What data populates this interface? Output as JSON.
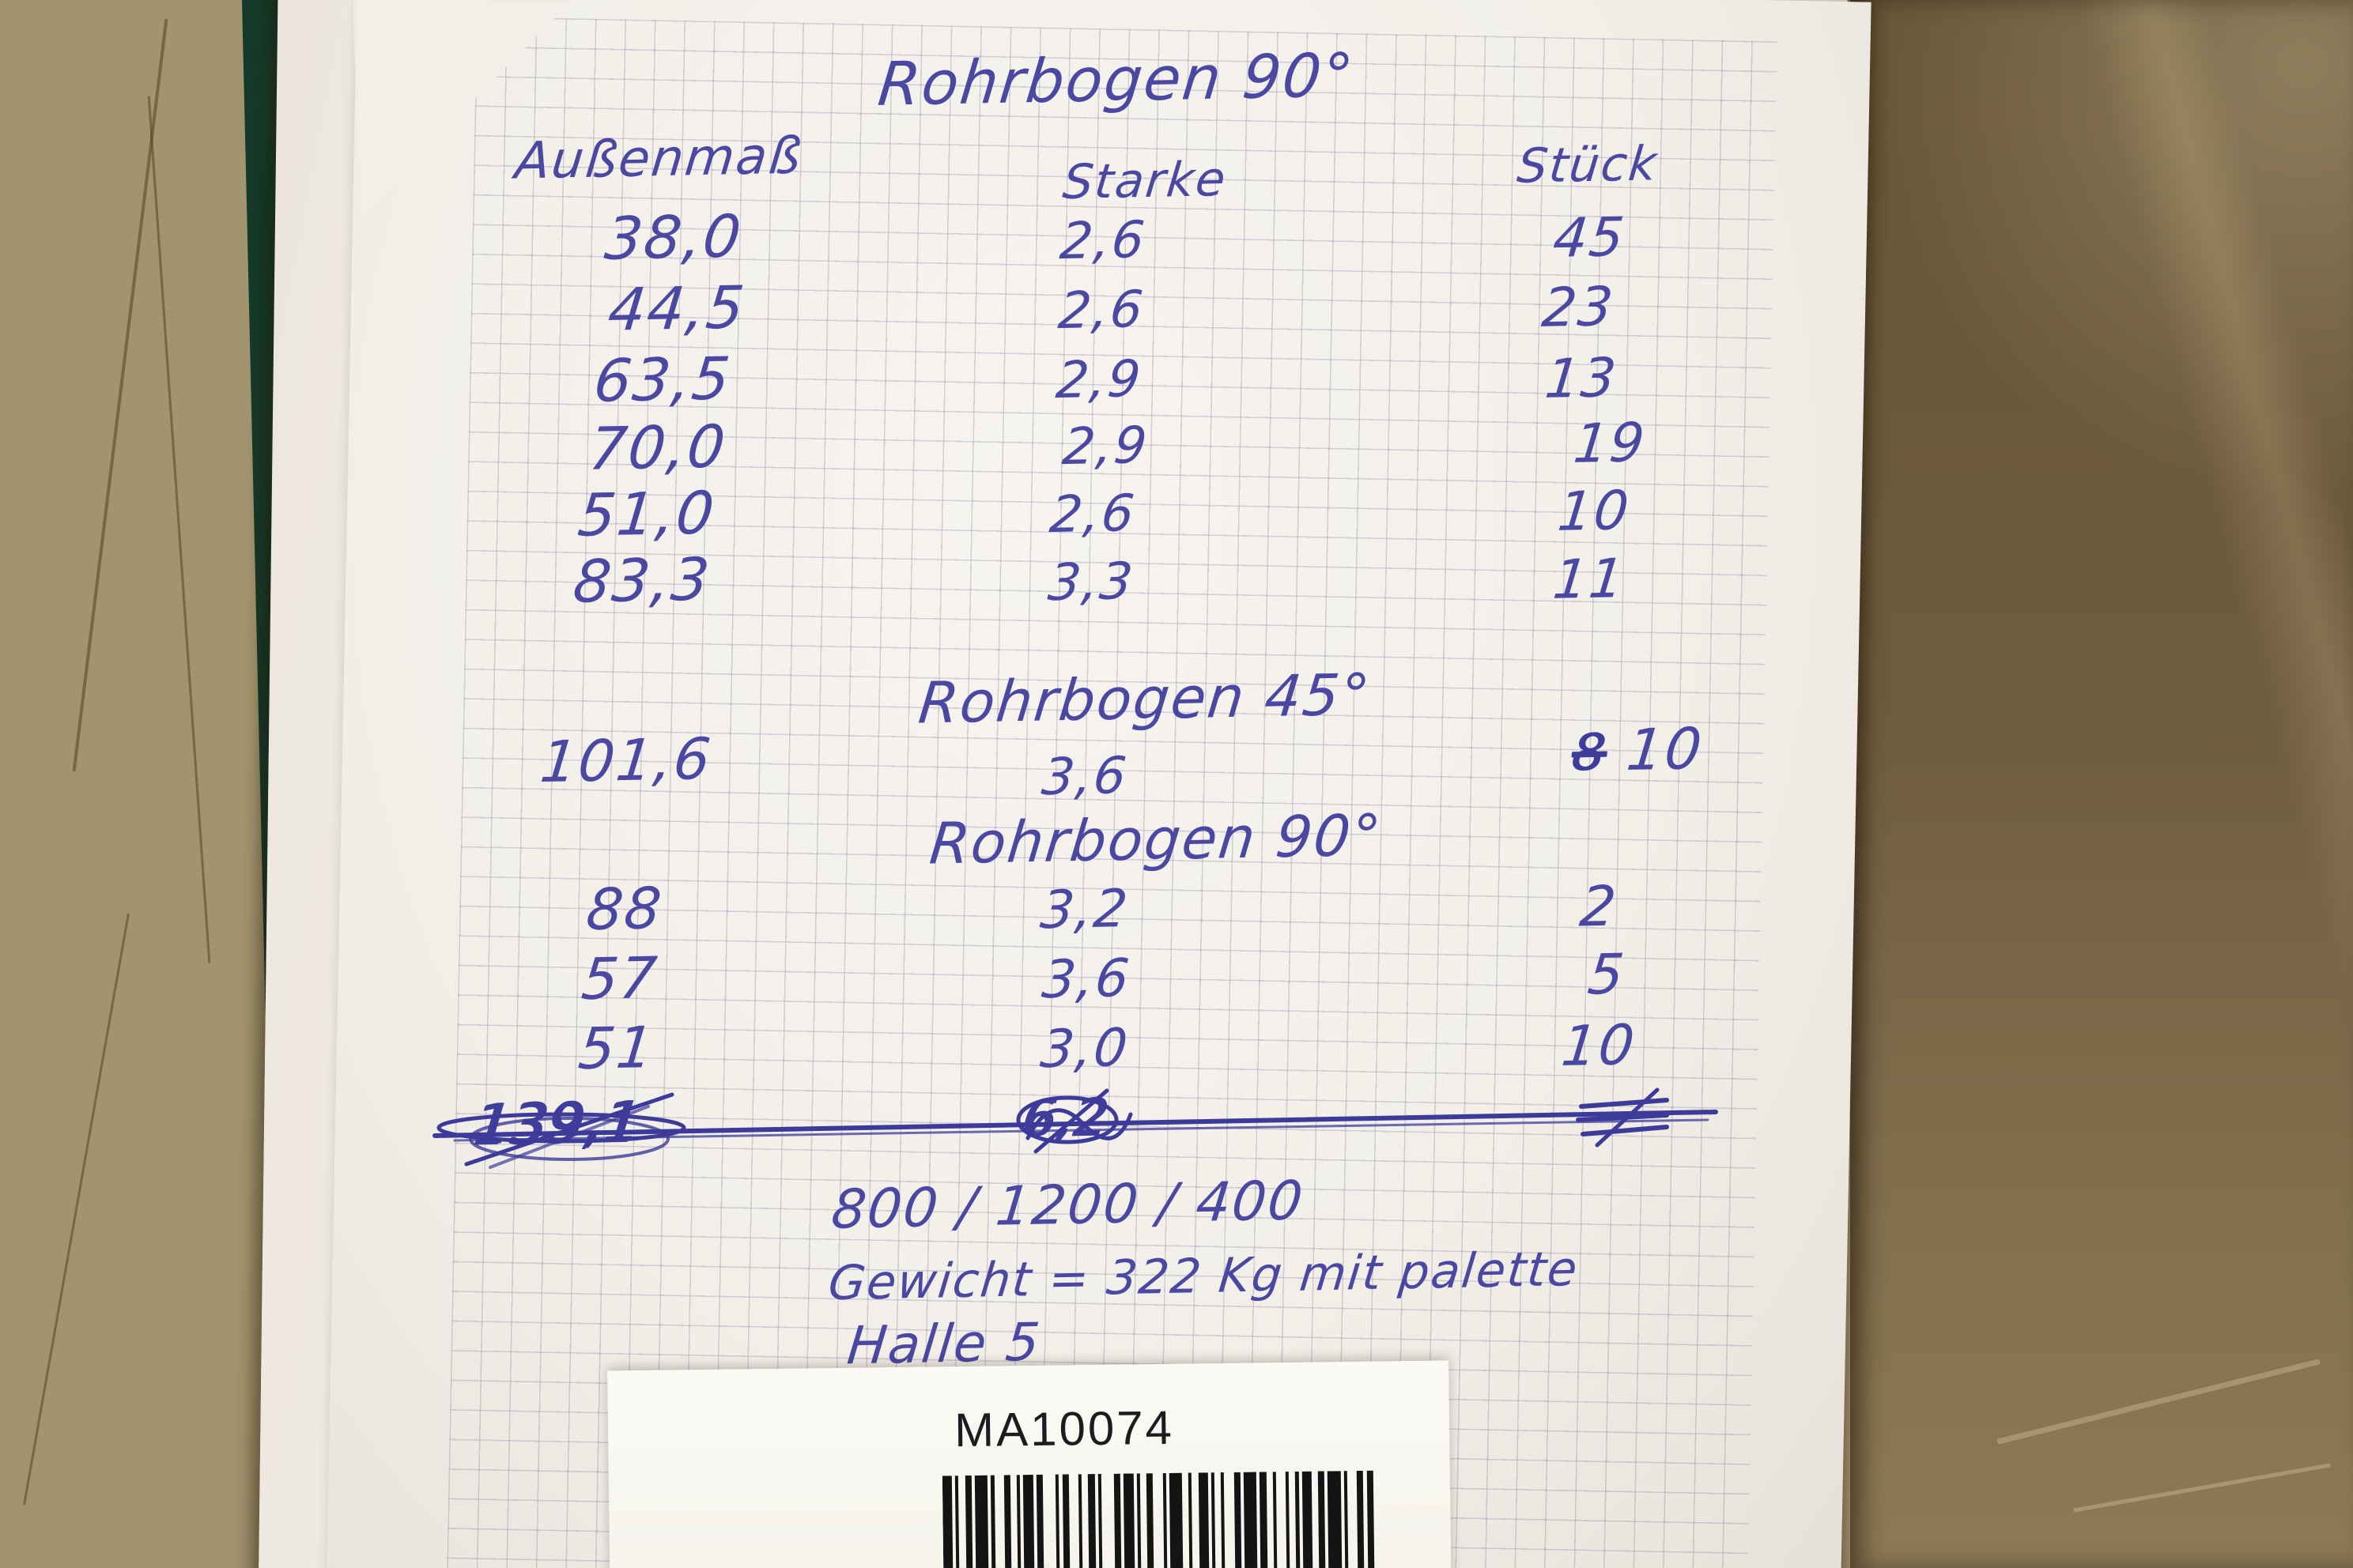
{
  "note": {
    "title_rohrbogen_90": "Rohrbogen 90°",
    "columns": {
      "outer": "Außenmaß",
      "thickness": "Starke",
      "count": "Stück"
    },
    "table_90": [
      {
        "outer": "38,0",
        "thickness": "2,6",
        "count": "45"
      },
      {
        "outer": "44,5",
        "thickness": "2,6",
        "count": "23"
      },
      {
        "outer": "63,5",
        "thickness": "2,9",
        "count": "13"
      },
      {
        "outer": "70,0",
        "thickness": "2,9",
        "count": "19"
      },
      {
        "outer": "51,0",
        "thickness": "2,6",
        "count": "10"
      },
      {
        "outer": "83,3",
        "thickness": "3,3",
        "count": "11"
      }
    ],
    "title_rohrbogen_45": "Rohrbogen 45°",
    "row_45": {
      "outer": "101,6",
      "thickness": "3,6",
      "count_crossed_out": "8",
      "count": "10"
    },
    "title_rohrbogen_90_2": "Rohrbogen 90°",
    "table_90_2": [
      {
        "outer": "88",
        "thickness": "3,2",
        "count": "2"
      },
      {
        "outer": "57",
        "thickness": "3,6",
        "count": "5"
      },
      {
        "outer": "51",
        "thickness": "3,0",
        "count": "10"
      }
    ],
    "crossed_out_row": {
      "outer": "139,1",
      "thickness": "6,2"
    },
    "pallet_dimensions": "800 / 1200 / 400",
    "weight_note": "Gewicht = 322 Kg mit palette",
    "hall_note": "Halle 5",
    "label_code": "MA10074"
  },
  "colors": {
    "ink": "#4a48a0",
    "paper": "#f2efe9",
    "wood_left": "#a2946e",
    "wood_right": "#6e5c3e",
    "folder_green": "#2a5c44"
  }
}
